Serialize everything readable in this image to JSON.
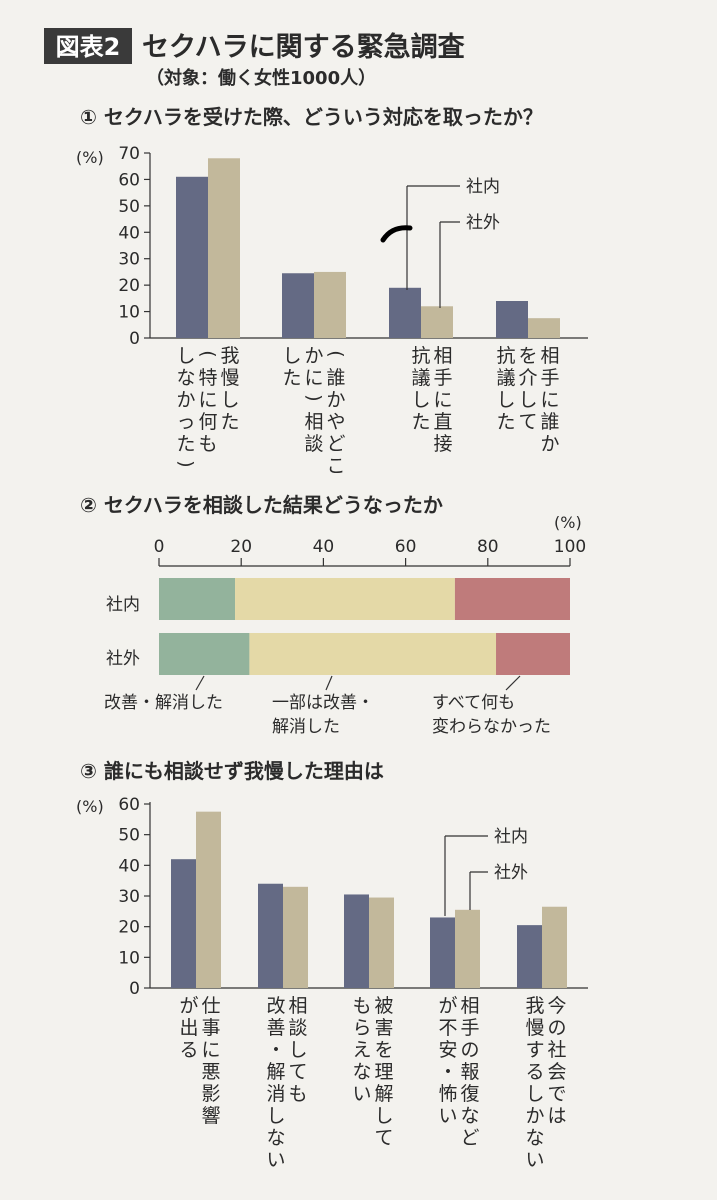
{
  "header": {
    "badge": "図表2",
    "title": "セクハラに関する緊急調査",
    "subtitle": "（対象：働く女性1000人）"
  },
  "colors": {
    "inside": "#646a84",
    "outside": "#c2b89b",
    "improved": "#93b39c",
    "partial": "#e4d9a7",
    "unchanged": "#bf7b7b",
    "background": "#f3f2ee"
  },
  "chart_data": [
    {
      "type": "bar",
      "title": "① セクハラを受けた際、どういう対応を取ったか？",
      "unit": "(%)",
      "ylim": [
        0,
        70
      ],
      "yticks": [
        0,
        10,
        20,
        30,
        40,
        50,
        60,
        70
      ],
      "categories": [
        [
          "我慢した",
          "（特に何も",
          "しなかった）"
        ],
        [
          "（誰かやどこ",
          "かに）相談",
          "した"
        ],
        [
          "相手に直接",
          "抗議した"
        ],
        [
          "相手に誰か",
          "を介して",
          "抗議した"
        ]
      ],
      "series": [
        {
          "name": "社内",
          "values": [
            61,
            24.5,
            19,
            14
          ]
        },
        {
          "name": "社外",
          "values": [
            68,
            25,
            12,
            7.5
          ]
        }
      ],
      "legend": [
        "社内",
        "社外"
      ]
    },
    {
      "type": "stacked-bar",
      "title": "② セクハラを相談した結果どうなったか",
      "unit": "(%)",
      "xlim": [
        0,
        100
      ],
      "xticks": [
        0,
        20,
        40,
        60,
        80,
        100
      ],
      "rows": [
        "社内",
        "社外"
      ],
      "segments": [
        {
          "name": "改善・解消した",
          "values": [
            18.5,
            22
          ]
        },
        {
          "name": "一部は改善・解消した",
          "values": [
            53.5,
            60
          ]
        },
        {
          "name": "すべて何も変わらなかった",
          "values": [
            28,
            18
          ]
        }
      ],
      "labels": [
        [
          "改善・解消した"
        ],
        [
          "一部は改善・",
          "解消した"
        ],
        [
          "すべて何も",
          "変わらなかった"
        ]
      ]
    },
    {
      "type": "bar",
      "title": "③ 誰にも相談せず我慢した理由は",
      "unit": "(%)",
      "ylim": [
        0,
        60
      ],
      "yticks": [
        0,
        10,
        20,
        30,
        40,
        50,
        60
      ],
      "categories": [
        [
          "仕事に悪影響",
          "が出る"
        ],
        [
          "相談しても",
          "改善・解消しない"
        ],
        [
          "被害を理解して",
          "もらえない"
        ],
        [
          "相手の報復など",
          "が不安・怖い"
        ],
        [
          "今の社会では",
          "我慢するしかない"
        ]
      ],
      "series": [
        {
          "name": "社内",
          "values": [
            42,
            34,
            30.5,
            23,
            20.5
          ]
        },
        {
          "name": "社外",
          "values": [
            57.5,
            33,
            29.5,
            25.5,
            26.5
          ]
        }
      ],
      "legend": [
        "社内",
        "社外"
      ]
    }
  ]
}
